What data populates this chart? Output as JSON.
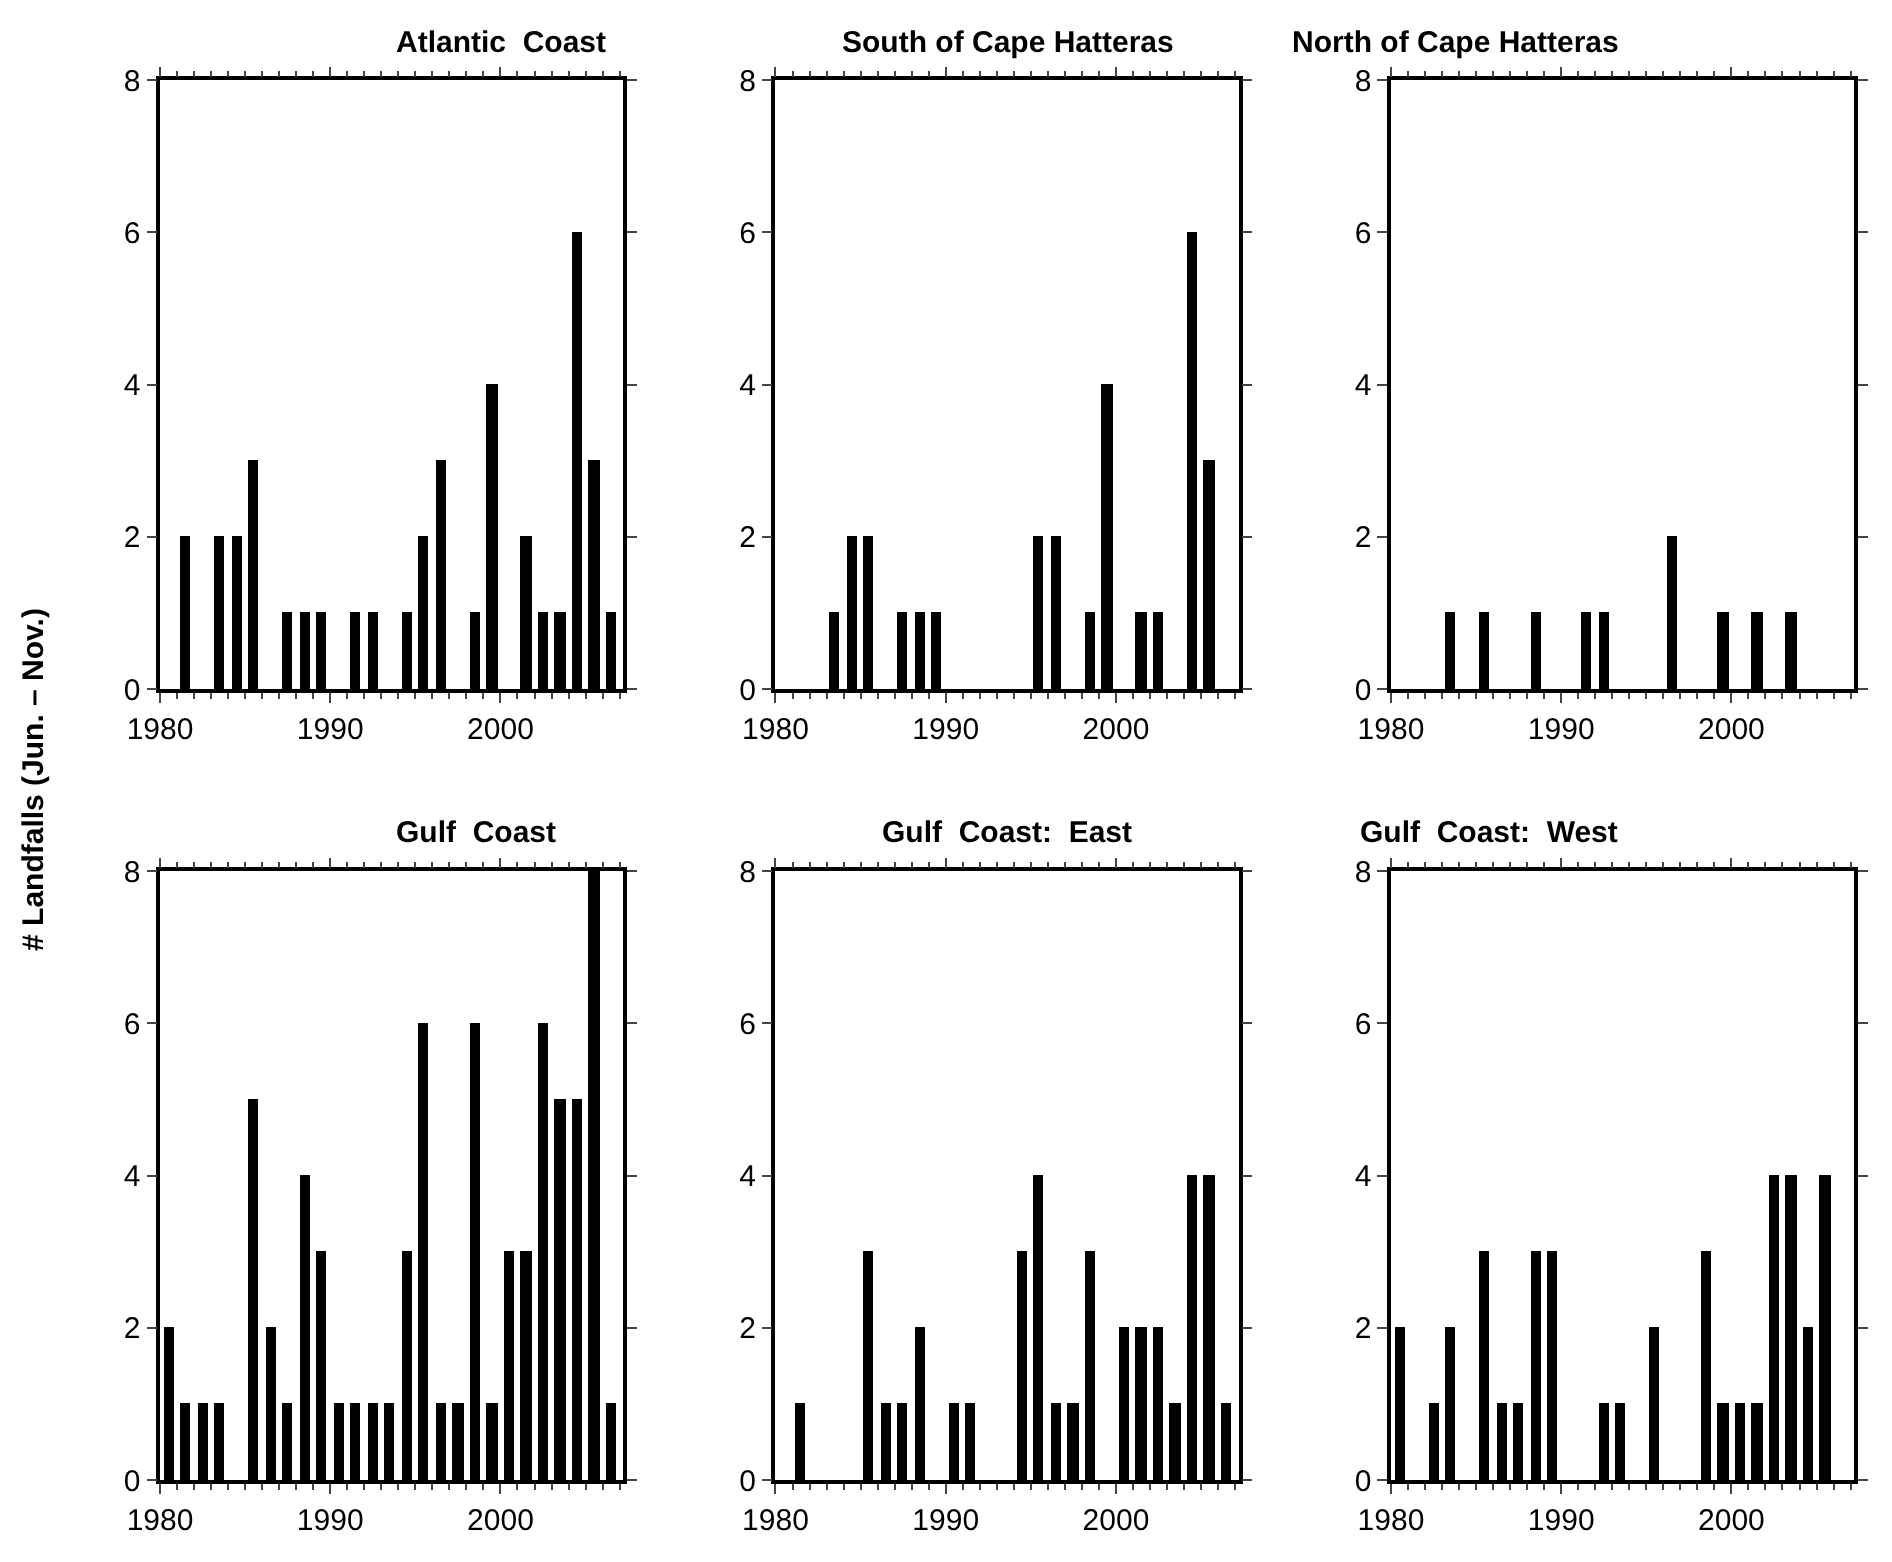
{
  "chart_data": [
    {
      "type": "bar",
      "title": "Atlantic  Coast",
      "ylabel": "# Landfalls (Jun. – Nov.)",
      "color": "#000000",
      "x": [
        1981.5,
        1983.5,
        1984.5,
        1985.5,
        1987.5,
        1988.5,
        1989.5,
        1991.5,
        1992.5,
        1994.5,
        1995.5,
        1996.5,
        1998.5,
        1999.5,
        2001.5,
        2002.5,
        2003.5,
        2004.5,
        2005.5,
        2006.5
      ],
      "values": [
        2,
        2,
        2,
        3,
        1,
        1,
        1,
        1,
        1,
        1,
        2,
        3,
        1,
        4,
        2,
        1,
        1,
        6,
        3,
        1
      ],
      "xlim": [
        1980,
        2007.2
      ],
      "xticks": [
        1980,
        1990,
        2000
      ],
      "ylim": [
        0,
        8
      ],
      "yticks": [
        0,
        2,
        4,
        6,
        8
      ]
    },
    {
      "type": "bar",
      "title": "South of Cape Hatteras",
      "color": "#000000",
      "x": [
        1983.5,
        1984.5,
        1985.5,
        1987.5,
        1988.5,
        1989.5,
        1995.5,
        1996.5,
        1998.5,
        1999.5,
        2001.5,
        2002.5,
        2004.5,
        2005.5
      ],
      "values": [
        1,
        2,
        2,
        1,
        1,
        1,
        2,
        2,
        1,
        4,
        1,
        1,
        6,
        3
      ],
      "xlim": [
        1980,
        2007.2
      ],
      "xticks": [
        1980,
        1990,
        2000
      ],
      "ylim": [
        0,
        8
      ],
      "yticks": [
        0,
        2,
        4,
        6,
        8
      ]
    },
    {
      "type": "bar",
      "title": "North of Cape Hatteras",
      "color": "#000000",
      "x": [
        1983.5,
        1985.5,
        1988.5,
        1991.5,
        1992.5,
        1996.5,
        1999.5,
        2001.5,
        2003.5
      ],
      "values": [
        1,
        1,
        1,
        1,
        1,
        2,
        1,
        1,
        1
      ],
      "xlim": [
        1980,
        2007.2
      ],
      "xticks": [
        1980,
        1990,
        2000
      ],
      "ylim": [
        0,
        8
      ],
      "yticks": [
        0,
        2,
        4,
        6,
        8
      ]
    },
    {
      "type": "bar",
      "title": "Gulf  Coast",
      "color": "#000000",
      "x": [
        1980.5,
        1981.5,
        1982.5,
        1983.5,
        1985.5,
        1986.5,
        1987.5,
        1988.5,
        1989.5,
        1990.5,
        1991.5,
        1992.5,
        1993.5,
        1994.5,
        1995.5,
        1996.5,
        1997.5,
        1998.5,
        1999.5,
        2000.5,
        2001.5,
        2002.5,
        2003.5,
        2004.5,
        2005.5,
        2006.5
      ],
      "values": [
        2,
        1,
        1,
        1,
        5,
        2,
        1,
        4,
        3,
        1,
        1,
        1,
        1,
        3,
        6,
        1,
        1,
        6,
        1,
        3,
        3,
        6,
        5,
        5,
        8,
        1
      ],
      "xlim": [
        1980,
        2007.2
      ],
      "xticks": [
        1980,
        1990,
        2000
      ],
      "ylim": [
        0,
        8
      ],
      "yticks": [
        0,
        2,
        4,
        6,
        8
      ]
    },
    {
      "type": "bar",
      "title": "Gulf  Coast:  East",
      "color": "#000000",
      "x": [
        1981.5,
        1985.5,
        1986.5,
        1987.5,
        1988.5,
        1990.5,
        1991.5,
        1994.5,
        1995.5,
        1996.5,
        1997.5,
        1998.5,
        2000.5,
        2001.5,
        2002.5,
        2003.5,
        2004.5,
        2005.5,
        2006.5
      ],
      "values": [
        1,
        3,
        1,
        1,
        2,
        1,
        1,
        3,
        4,
        1,
        1,
        3,
        2,
        2,
        2,
        1,
        4,
        4,
        1
      ],
      "xlim": [
        1980,
        2007.2
      ],
      "xticks": [
        1980,
        1990,
        2000
      ],
      "ylim": [
        0,
        8
      ],
      "yticks": [
        0,
        2,
        4,
        6,
        8
      ]
    },
    {
      "type": "bar",
      "title": "Gulf  Coast:  West",
      "color": "#000000",
      "x": [
        1980.5,
        1982.5,
        1983.5,
        1985.5,
        1986.5,
        1987.5,
        1988.5,
        1989.5,
        1992.5,
        1993.5,
        1995.5,
        1998.5,
        1999.5,
        2000.5,
        2001.5,
        2002.5,
        2003.5,
        2004.5,
        2005.5
      ],
      "values": [
        2,
        1,
        2,
        3,
        1,
        1,
        3,
        3,
        1,
        1,
        2,
        3,
        1,
        1,
        1,
        4,
        4,
        2,
        4
      ],
      "xlim": [
        1980,
        2007.2
      ],
      "xticks": [
        1980,
        1990,
        2000
      ],
      "ylim": [
        0,
        8
      ],
      "yticks": [
        0,
        2,
        4,
        6,
        8
      ]
    }
  ]
}
